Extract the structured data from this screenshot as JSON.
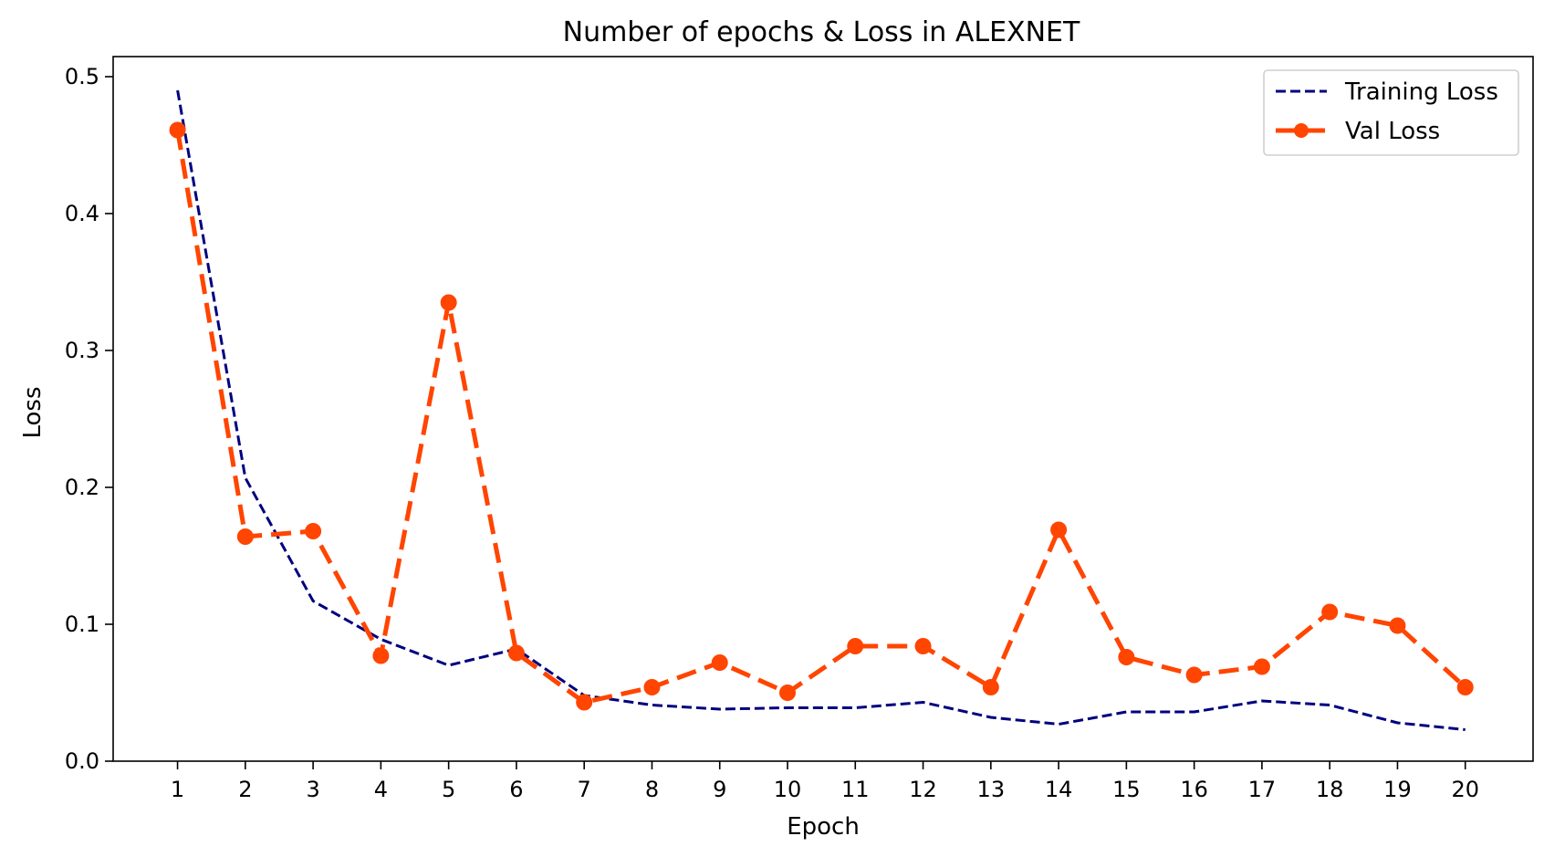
{
  "chart_data": {
    "type": "line",
    "title": "Number of epochs & Loss in ALEXNET",
    "xlabel": "Epoch",
    "ylabel": "Loss",
    "x": [
      1,
      2,
      3,
      4,
      5,
      6,
      7,
      8,
      9,
      10,
      11,
      12,
      13,
      14,
      15,
      16,
      17,
      18,
      19,
      20
    ],
    "xticks": [
      "1",
      "2",
      "3",
      "4",
      "5",
      "6",
      "7",
      "8",
      "9",
      "10",
      "11",
      "12",
      "13",
      "14",
      "15",
      "16",
      "17",
      "18",
      "19",
      "20"
    ],
    "yticks": [
      "0.0",
      "0.1",
      "0.2",
      "0.3",
      "0.4",
      "0.5"
    ],
    "ylim": [
      0,
      0.5
    ],
    "grid": false,
    "legend_position": "top-right",
    "series": [
      {
        "name": "Training Loss",
        "color": "#00007f",
        "style": "dashed",
        "marker": "none",
        "values": [
          0.49,
          0.207,
          0.117,
          0.089,
          0.07,
          0.082,
          0.048,
          0.041,
          0.038,
          0.039,
          0.039,
          0.043,
          0.032,
          0.027,
          0.036,
          0.036,
          0.044,
          0.041,
          0.028,
          0.023
        ]
      },
      {
        "name": "Val Loss",
        "color": "#ff4500",
        "style": "dashed",
        "marker": "circle",
        "values": [
          0.461,
          0.164,
          0.168,
          0.077,
          0.335,
          0.079,
          0.043,
          0.054,
          0.072,
          0.05,
          0.084,
          0.084,
          0.054,
          0.169,
          0.076,
          0.063,
          0.069,
          0.109,
          0.099,
          0.054
        ]
      }
    ]
  }
}
